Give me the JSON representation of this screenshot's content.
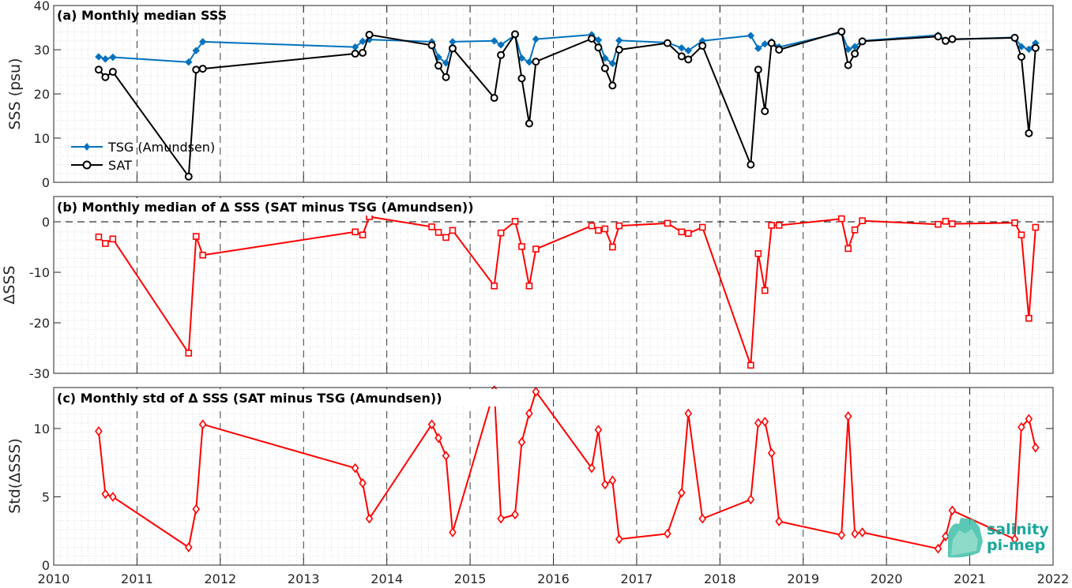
{
  "colors": {
    "tsg": "#0072BD",
    "sat": "#000000",
    "delta": "#FF0000",
    "grid_minor": "#d9d9d9",
    "logo": "#1aa89c"
  },
  "x_axis": {
    "ticks": [
      2010,
      2011,
      2012,
      2013,
      2014,
      2015,
      2016,
      2017,
      2018,
      2019,
      2020,
      2021,
      2022
    ],
    "tick_labels": [
      "2010",
      "2011",
      "2012",
      "2013",
      "2014",
      "2015",
      "2016",
      "2017",
      "2018",
      "2019",
      "2020",
      "2021",
      "2022"
    ]
  },
  "logo": {
    "line1": "salinity",
    "line2": "pi-mep"
  },
  "chart_data": [
    {
      "type": "line",
      "title": "(a) Monthly median SSS",
      "ylabel": "SSS (psu)",
      "xlim": [
        2010,
        2022
      ],
      "ylim": [
        0,
        40
      ],
      "yticks": [
        0,
        10,
        20,
        30,
        40
      ],
      "grid": "minor dotted, vertical dashed year lines",
      "legend_position": "lower-left",
      "series": [
        {
          "name": "TSG (Amundsen)",
          "marker": "diamond",
          "x": [
            2010.54,
            2010.62,
            2010.71,
            2011.62,
            2011.71,
            2011.79,
            2013.62,
            2013.71,
            2013.79,
            2014.54,
            2014.62,
            2014.71,
            2014.79,
            2015.29,
            2015.37,
            2015.54,
            2015.62,
            2015.71,
            2015.79,
            2016.46,
            2016.54,
            2016.62,
            2016.71,
            2016.79,
            2017.37,
            2017.54,
            2017.62,
            2017.79,
            2018.37,
            2018.46,
            2018.54,
            2018.62,
            2018.71,
            2019.46,
            2019.54,
            2019.62,
            2019.71,
            2020.62,
            2020.71,
            2020.79,
            2021.54,
            2021.62,
            2021.71,
            2021.79
          ],
          "y": [
            28.4,
            27.9,
            28.3,
            27.2,
            29.8,
            31.8,
            30.6,
            31.9,
            32.3,
            31.8,
            28.3,
            27.0,
            31.8,
            32.0,
            31.1,
            33.3,
            28.1,
            27.2,
            32.4,
            33.4,
            32.2,
            28.1,
            26.9,
            32.1,
            31.6,
            30.4,
            29.8,
            32.0,
            33.2,
            30.3,
            31.3,
            31.8,
            30.6,
            33.9,
            30.1,
            30.7,
            32.0,
            33.3,
            32.2,
            32.3,
            32.8,
            30.7,
            30.1,
            31.5
          ]
        },
        {
          "name": "SAT",
          "marker": "circle",
          "x": [
            2010.54,
            2010.62,
            2010.71,
            2011.62,
            2011.71,
            2011.79,
            2013.62,
            2013.71,
            2013.79,
            2014.54,
            2014.62,
            2014.71,
            2014.79,
            2015.29,
            2015.37,
            2015.54,
            2015.62,
            2015.71,
            2015.79,
            2016.46,
            2016.54,
            2016.62,
            2016.71,
            2016.79,
            2017.37,
            2017.54,
            2017.62,
            2017.79,
            2018.37,
            2018.46,
            2018.54,
            2018.62,
            2018.71,
            2019.46,
            2019.54,
            2019.62,
            2019.71,
            2020.62,
            2020.71,
            2020.79,
            2021.54,
            2021.62,
            2021.71,
            2021.79
          ],
          "y": [
            25.5,
            23.8,
            25.0,
            1.3,
            25.5,
            25.7,
            29.1,
            29.3,
            33.4,
            31.0,
            26.4,
            23.8,
            30.3,
            19.1,
            28.8,
            33.5,
            23.5,
            13.3,
            27.3,
            32.5,
            30.5,
            25.8,
            21.9,
            30.0,
            31.5,
            28.5,
            27.8,
            30.9,
            4.0,
            25.5,
            16.1,
            31.5,
            30.0,
            34.1,
            26.5,
            29.1,
            31.9,
            33.0,
            32.0,
            32.4,
            32.7,
            28.4,
            11.1,
            30.4
          ]
        }
      ]
    },
    {
      "type": "line",
      "title": "(b) Monthly median of Δ SSS (SAT minus TSG (Amundsen))",
      "ylabel": "ΔSSS",
      "xlim": [
        2010,
        2022
      ],
      "ylim": [
        -30,
        5
      ],
      "yticks": [
        -30,
        -20,
        -10,
        0
      ],
      "reference_line": 0,
      "series": [
        {
          "marker": "square",
          "x": [
            2010.54,
            2010.62,
            2010.71,
            2011.62,
            2011.71,
            2011.79,
            2013.62,
            2013.71,
            2013.79,
            2014.54,
            2014.62,
            2014.71,
            2014.79,
            2015.29,
            2015.37,
            2015.54,
            2015.62,
            2015.71,
            2015.79,
            2016.46,
            2016.54,
            2016.62,
            2016.71,
            2016.79,
            2017.37,
            2017.54,
            2017.62,
            2017.79,
            2018.37,
            2018.46,
            2018.54,
            2018.62,
            2018.71,
            2019.46,
            2019.54,
            2019.62,
            2019.71,
            2020.62,
            2020.71,
            2020.79,
            2021.54,
            2021.62,
            2021.71,
            2021.79
          ],
          "y": [
            -3.0,
            -4.3,
            -3.4,
            -26.0,
            -2.9,
            -6.6,
            -2.0,
            -2.6,
            1.0,
            -1.0,
            -2.1,
            -3.1,
            -1.7,
            -12.7,
            -2.2,
            0.1,
            -4.9,
            -12.7,
            -5.4,
            -0.8,
            -1.7,
            -1.4,
            -5.0,
            -0.8,
            -0.3,
            -2.0,
            -2.3,
            -1.1,
            -28.4,
            -6.3,
            -13.6,
            -0.7,
            -0.7,
            0.6,
            -5.3,
            -1.6,
            0.2,
            -0.5,
            0.1,
            -0.4,
            -0.2,
            -2.6,
            -19.1,
            -1.1
          ]
        }
      ]
    },
    {
      "type": "line",
      "title": "(c) Monthly std of Δ SSS (SAT minus TSG (Amundsen))",
      "ylabel": "Std(ΔSSS)",
      "xlim": [
        2010,
        2022
      ],
      "ylim": [
        0,
        13
      ],
      "yticks": [
        0,
        5,
        10
      ],
      "series": [
        {
          "marker": "diamond",
          "x": [
            2010.54,
            2010.62,
            2010.71,
            2011.62,
            2011.71,
            2011.79,
            2013.62,
            2013.71,
            2013.79,
            2014.54,
            2014.62,
            2014.71,
            2014.79,
            2015.29,
            2015.37,
            2015.54,
            2015.62,
            2015.71,
            2015.79,
            2016.46,
            2016.54,
            2016.62,
            2016.71,
            2016.79,
            2017.37,
            2017.54,
            2017.62,
            2017.79,
            2018.37,
            2018.46,
            2018.54,
            2018.62,
            2018.71,
            2019.46,
            2019.54,
            2019.62,
            2019.71,
            2020.62,
            2020.71,
            2020.79,
            2021.54,
            2021.62,
            2021.71,
            2021.79
          ],
          "y": [
            9.8,
            5.2,
            5.0,
            1.3,
            4.1,
            10.3,
            7.1,
            6.0,
            3.4,
            10.3,
            9.3,
            8.0,
            2.4,
            12.8,
            3.4,
            3.7,
            9.0,
            11.1,
            12.7,
            7.1,
            9.9,
            5.9,
            6.2,
            1.9,
            2.3,
            5.3,
            11.1,
            3.4,
            4.8,
            10.4,
            10.5,
            8.2,
            3.2,
            2.2,
            10.9,
            2.3,
            2.4,
            1.2,
            2.1,
            4.0,
            1.9,
            10.1,
            10.7,
            8.6
          ]
        }
      ]
    }
  ]
}
